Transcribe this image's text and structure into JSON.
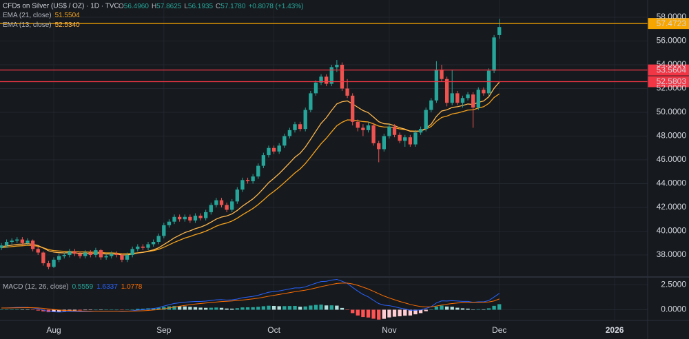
{
  "chart_data": {
    "type": "candlestick",
    "title": "CFDs on Silver (US$ / OZ) · 1D · TVC",
    "header_values": [
      {
        "key": "O",
        "value": "56.4960"
      },
      {
        "key": "H",
        "value": "57.8625"
      },
      {
        "key": "L",
        "value": "56.1935"
      },
      {
        "key": "C",
        "value": "57.1780"
      },
      {
        "key": "",
        "value": "+0.8078 (+1.43%)"
      }
    ],
    "colors": {
      "up": "#26a69a",
      "down": "#ef5350",
      "hist_up": "#26a69a",
      "hist_up_fading": "#b2dfdb",
      "hist_down": "#ff5252",
      "hist_down_fading": "#ffcdd2"
    },
    "xlim": [
      -0.26,
      123.3
    ],
    "xticks": [
      {
        "value": 10,
        "label": "Aug"
      },
      {
        "value": 31,
        "label": "Sep"
      },
      {
        "value": 52,
        "label": "Oct"
      },
      {
        "value": 74,
        "label": "Nov"
      },
      {
        "value": 95,
        "label": "Dec"
      },
      {
        "value": 117,
        "label": "2026"
      }
    ],
    "ylim": [
      36.26,
      59.45
    ],
    "yticks": [
      {
        "value": 38,
        "label": "38.0000"
      },
      {
        "value": 40,
        "label": "40.0000"
      },
      {
        "value": 42,
        "label": "42.0000"
      },
      {
        "value": 44,
        "label": "44.0000"
      },
      {
        "value": 46,
        "label": "46.0000"
      },
      {
        "value": 48,
        "label": "48.0000"
      },
      {
        "value": 50,
        "label": "50.0000"
      },
      {
        "value": 52,
        "label": "52.0000"
      },
      {
        "value": 54,
        "label": "54.0000"
      },
      {
        "value": 56,
        "label": "56.0000"
      },
      {
        "value": 58,
        "label": "58.0000"
      }
    ],
    "grid": true,
    "open": [
      38.6,
      38.8,
      39.1,
      39.2,
      39.3,
      39.0,
      39.2,
      38.5,
      38.2,
      37.3,
      37.0,
      37.6,
      37.9,
      38.0,
      38.3,
      38.1,
      37.9,
      38.2,
      38.0,
      38.4,
      37.8,
      37.9,
      38.1,
      38.0,
      37.6,
      38.0,
      38.5,
      38.7,
      38.6,
      38.9,
      39.1,
      39.6,
      40.5,
      40.8,
      41.2,
      41.0,
      41.2,
      40.9,
      41.3,
      41.1,
      41.6,
      42.2,
      42.6,
      42.2,
      41.8,
      42.5,
      43.5,
      44.3,
      44.2,
      44.6,
      45.5,
      46.4,
      47.0,
      46.7,
      47.2,
      48.0,
      48.5,
      49.0,
      48.6,
      50.2,
      51.6,
      52.5,
      53.0,
      52.4,
      53.8,
      54.0,
      52.0,
      51.4,
      49.2,
      48.7,
      48.5,
      48.9,
      47.4,
      46.9,
      48.0,
      48.8,
      48.1,
      47.6,
      47.9,
      47.3,
      48.3,
      48.6,
      50.2,
      51.0,
      53.6,
      52.8,
      50.8,
      51.6,
      50.8,
      51.2,
      51.5,
      50.4,
      51.9,
      51.6,
      53.5,
      56.496
    ],
    "high": [
      39.0,
      39.3,
      39.4,
      39.5,
      39.5,
      39.4,
      39.3,
      38.7,
      38.3,
      37.5,
      37.8,
      38.1,
      38.2,
      38.5,
      38.5,
      38.3,
      38.4,
      38.4,
      38.6,
      38.5,
      38.1,
      38.3,
      38.3,
      38.1,
      38.2,
      38.7,
      38.9,
      38.9,
      39.1,
      39.3,
      39.8,
      40.7,
      41.0,
      41.4,
      41.4,
      41.4,
      41.4,
      41.5,
      41.5,
      41.8,
      42.4,
      42.8,
      42.8,
      42.4,
      42.7,
      43.7,
      44.5,
      44.5,
      44.8,
      45.7,
      46.6,
      47.2,
      47.2,
      47.4,
      48.2,
      48.7,
      49.2,
      49.2,
      50.4,
      51.8,
      52.7,
      53.2,
      53.2,
      54.0,
      54.4,
      54.2,
      52.8,
      51.6,
      49.4,
      49.0,
      49.2,
      49.1,
      47.6,
      48.2,
      49.0,
      49.0,
      48.3,
      48.1,
      48.1,
      48.5,
      48.8,
      50.4,
      51.2,
      54.3,
      54.0,
      53.0,
      53.6,
      51.8,
      51.4,
      51.7,
      51.7,
      52.1,
      52.1,
      53.7,
      56.5,
      57.8625
    ],
    "low": [
      38.4,
      38.6,
      38.9,
      39.0,
      38.8,
      38.8,
      38.3,
      38.0,
      37.1,
      36.8,
      36.9,
      37.4,
      37.7,
      37.8,
      37.9,
      37.7,
      37.7,
      37.8,
      37.8,
      37.6,
      37.6,
      37.7,
      37.8,
      37.4,
      37.4,
      37.8,
      38.3,
      38.4,
      38.4,
      38.7,
      38.9,
      39.4,
      40.3,
      40.6,
      40.8,
      40.8,
      40.7,
      40.7,
      40.9,
      40.9,
      41.4,
      42.0,
      42.0,
      41.6,
      41.6,
      42.3,
      43.3,
      44.0,
      44.0,
      44.4,
      45.3,
      46.2,
      46.5,
      46.5,
      47.0,
      47.8,
      48.3,
      48.4,
      48.4,
      50.0,
      51.4,
      52.3,
      52.2,
      52.2,
      53.4,
      51.8,
      51.2,
      48.9,
      48.4,
      48.0,
      48.3,
      47.2,
      45.8,
      46.7,
      47.8,
      47.9,
      47.4,
      47.1,
      47.1,
      47.1,
      48.1,
      48.4,
      50.0,
      50.8,
      52.6,
      50.5,
      50.6,
      50.6,
      50.4,
      51.0,
      48.7,
      50.2,
      51.4,
      51.4,
      53.3,
      56.1935
    ],
    "close": [
      38.8,
      39.1,
      39.2,
      39.3,
      39.0,
      39.2,
      38.5,
      38.2,
      37.3,
      37.0,
      37.6,
      37.9,
      38.0,
      38.3,
      38.1,
      37.9,
      38.2,
      38.0,
      38.4,
      37.8,
      37.9,
      38.1,
      38.0,
      37.6,
      38.0,
      38.5,
      38.7,
      38.6,
      38.9,
      39.1,
      39.6,
      40.5,
      40.8,
      41.2,
      41.0,
      41.2,
      40.9,
      41.3,
      41.1,
      41.6,
      42.2,
      42.6,
      42.2,
      41.8,
      42.5,
      43.5,
      44.3,
      44.2,
      44.6,
      45.5,
      46.4,
      47.0,
      46.7,
      47.2,
      48.0,
      48.5,
      49.0,
      48.6,
      50.2,
      51.6,
      52.5,
      53.0,
      52.4,
      53.8,
      54.0,
      52.0,
      51.4,
      49.2,
      48.7,
      48.5,
      48.9,
      47.4,
      46.9,
      48.0,
      48.8,
      48.1,
      47.6,
      47.9,
      47.3,
      48.3,
      48.6,
      50.2,
      51.0,
      53.6,
      52.8,
      50.8,
      51.6,
      50.8,
      51.2,
      51.5,
      50.4,
      51.9,
      51.6,
      53.5,
      56.3,
      57.178
    ],
    "series": [
      {
        "name": "EMA (21, close)",
        "value_label": "51.5504",
        "color": "#f7a21b",
        "values": [
          38.6,
          38.65,
          38.7,
          38.75,
          38.77,
          38.81,
          38.78,
          38.73,
          38.6,
          38.45,
          38.37,
          38.33,
          38.3,
          38.3,
          38.28,
          38.25,
          38.25,
          38.23,
          38.24,
          38.2,
          38.17,
          38.17,
          38.15,
          38.1,
          38.09,
          38.13,
          38.18,
          38.22,
          38.28,
          38.36,
          38.47,
          38.65,
          38.85,
          39.06,
          39.24,
          39.42,
          39.55,
          39.71,
          39.84,
          40.0,
          40.2,
          40.42,
          40.58,
          40.69,
          40.85,
          41.09,
          41.38,
          41.64,
          41.91,
          42.24,
          42.62,
          43.02,
          43.35,
          43.7,
          44.09,
          44.49,
          44.9,
          45.24,
          45.69,
          46.23,
          46.8,
          47.36,
          47.82,
          48.36,
          48.87,
          49.16,
          49.36,
          49.35,
          49.29,
          49.22,
          49.19,
          49.03,
          48.84,
          48.76,
          48.76,
          48.7,
          48.6,
          48.54,
          48.43,
          48.42,
          48.43,
          48.59,
          48.81,
          49.25,
          49.57,
          49.68,
          49.86,
          49.94,
          50.06,
          50.19,
          50.21,
          50.36,
          50.47,
          50.75,
          51.25,
          51.5504
        ]
      },
      {
        "name": "EMA (13, close)",
        "value_label": "52.5340",
        "color": "#ffb74d",
        "values": [
          38.7,
          38.76,
          38.82,
          38.89,
          38.91,
          38.95,
          38.89,
          38.79,
          38.58,
          38.35,
          38.24,
          38.19,
          38.17,
          38.19,
          38.17,
          38.13,
          38.14,
          38.12,
          38.16,
          38.11,
          38.08,
          38.08,
          38.07,
          38.0,
          38.0,
          38.07,
          38.16,
          38.22,
          38.32,
          38.43,
          38.6,
          38.87,
          39.15,
          39.44,
          39.66,
          39.88,
          40.03,
          40.21,
          40.34,
          40.52,
          40.76,
          41.02,
          41.19,
          41.28,
          41.45,
          41.74,
          42.11,
          42.41,
          42.72,
          43.12,
          43.59,
          44.08,
          44.45,
          44.84,
          45.29,
          45.75,
          46.22,
          46.56,
          47.08,
          47.73,
          48.41,
          49.07,
          49.55,
          50.16,
          50.71,
          50.89,
          50.96,
          50.71,
          50.42,
          50.15,
          49.97,
          49.6,
          49.21,
          49.04,
          49.01,
          48.88,
          48.7,
          48.59,
          48.4,
          48.39,
          48.42,
          48.67,
          49.0,
          49.66,
          50.11,
          50.21,
          50.41,
          50.47,
          50.57,
          50.7,
          50.66,
          50.84,
          50.95,
          51.31,
          52.02,
          52.534
        ]
      }
    ],
    "price_lines": [
      {
        "value": 57.4723,
        "label": "57.4723",
        "color": "#f7a600",
        "text_color": "#131722"
      },
      {
        "value": 53.5604,
        "label": "53.5604",
        "color": "#f23645",
        "text_color": "#ffffff"
      },
      {
        "value": 52.5803,
        "label": "52.5803",
        "color": "#f23645",
        "text_color": "#ffffff"
      }
    ],
    "macd": {
      "name": "MACD (12, 26, close)",
      "ylim": [
        -1.07,
        3.21
      ],
      "yticks": [
        {
          "value": 0,
          "label": "0.0000"
        },
        {
          "value": 2.5,
          "label": "2.5000"
        }
      ],
      "histogram": {
        "value_label": "0.5559",
        "color": "#26a69a",
        "values": [
          0,
          0.01,
          0.02,
          0.04,
          0.03,
          0.02,
          -0.02,
          -0.08,
          -0.17,
          -0.25,
          -0.23,
          -0.2,
          -0.14,
          -0.09,
          -0.07,
          -0.07,
          -0.04,
          -0.03,
          0.02,
          0,
          0,
          0,
          0.02,
          -0.02,
          0,
          0.04,
          0.09,
          0.1,
          0.14,
          0.15,
          0.19,
          0.27,
          0.33,
          0.37,
          0.34,
          0.33,
          0.29,
          0.26,
          0.21,
          0.19,
          0.2,
          0.22,
          0.19,
          0.12,
          0.11,
          0.15,
          0.23,
          0.24,
          0.25,
          0.29,
          0.35,
          0.4,
          0.38,
          0.35,
          0.36,
          0.37,
          0.38,
          0.3,
          0.33,
          0.42,
          0.48,
          0.51,
          0.43,
          0.44,
          0.41,
          0.18,
          -0.03,
          -0.34,
          -0.58,
          -0.73,
          -0.78,
          -0.9,
          -0.99,
          -0.91,
          -0.77,
          -0.7,
          -0.66,
          -0.6,
          -0.58,
          -0.46,
          -0.34,
          -0.15,
          0.02,
          0.31,
          0.42,
          0.32,
          0.29,
          0.2,
          0.14,
          0.11,
          0.01,
          0.05,
          0.04,
          0.14,
          0.39,
          0.5559
        ]
      },
      "macd_line": {
        "value_label": "1.6337",
        "color": "#2962ff",
        "values": [
          0.17,
          0.18,
          0.2,
          0.23,
          0.23,
          0.23,
          0.18,
          0.1,
          -0.03,
          -0.17,
          -0.21,
          -0.23,
          -0.21,
          -0.18,
          -0.18,
          -0.2,
          -0.18,
          -0.18,
          -0.13,
          -0.15,
          -0.15,
          -0.15,
          -0.13,
          -0.17,
          -0.15,
          -0.1,
          -0.03,
          0,
          0.07,
          0.12,
          0.21,
          0.36,
          0.5,
          0.63,
          0.69,
          0.76,
          0.79,
          0.83,
          0.83,
          0.86,
          0.92,
          0.99,
          1.01,
          0.97,
          0.99,
          1.07,
          1.2,
          1.27,
          1.34,
          1.45,
          1.6,
          1.75,
          1.82,
          1.88,
          1.98,
          2.08,
          2.18,
          2.18,
          2.29,
          2.48,
          2.66,
          2.82,
          2.85,
          2.97,
          3.04,
          2.85,
          2.64,
          2.24,
          1.86,
          1.53,
          1.29,
          0.94,
          0.61,
          0.46,
          0.41,
          0.3,
          0.17,
          0.08,
          -0.05,
          -0.05,
          -0.02,
          0.13,
          0.31,
          0.68,
          0.89,
          0.87,
          0.91,
          0.87,
          0.84,
          0.84,
          0.74,
          0.79,
          0.79,
          0.92,
          1.27,
          1.6337
        ]
      },
      "signal": {
        "value_label": "1.0778",
        "color": "#ff6d00",
        "values": [
          0.17,
          0.17,
          0.18,
          0.19,
          0.2,
          0.21,
          0.2,
          0.18,
          0.14,
          0.08,
          0.02,
          -0.03,
          -0.07,
          -0.09,
          -0.11,
          -0.13,
          -0.14,
          -0.15,
          -0.15,
          -0.15,
          -0.15,
          -0.15,
          -0.15,
          -0.15,
          -0.15,
          -0.14,
          -0.12,
          -0.1,
          -0.07,
          -0.03,
          0.02,
          0.09,
          0.17,
          0.26,
          0.35,
          0.43,
          0.5,
          0.57,
          0.62,
          0.67,
          0.72,
          0.77,
          0.82,
          0.85,
          0.88,
          0.92,
          0.97,
          1.03,
          1.09,
          1.16,
          1.25,
          1.35,
          1.44,
          1.53,
          1.62,
          1.71,
          1.8,
          1.88,
          1.96,
          2.06,
          2.18,
          2.31,
          2.42,
          2.53,
          2.63,
          2.67,
          2.67,
          2.58,
          2.44,
          2.26,
          2.07,
          1.84,
          1.6,
          1.37,
          1.18,
          1.0,
          0.83,
          0.68,
          0.53,
          0.41,
          0.32,
          0.28,
          0.29,
          0.37,
          0.47,
          0.55,
          0.62,
          0.67,
          0.7,
          0.73,
          0.73,
          0.74,
          0.75,
          0.78,
          0.88,
          1.0778
        ]
      }
    }
  }
}
